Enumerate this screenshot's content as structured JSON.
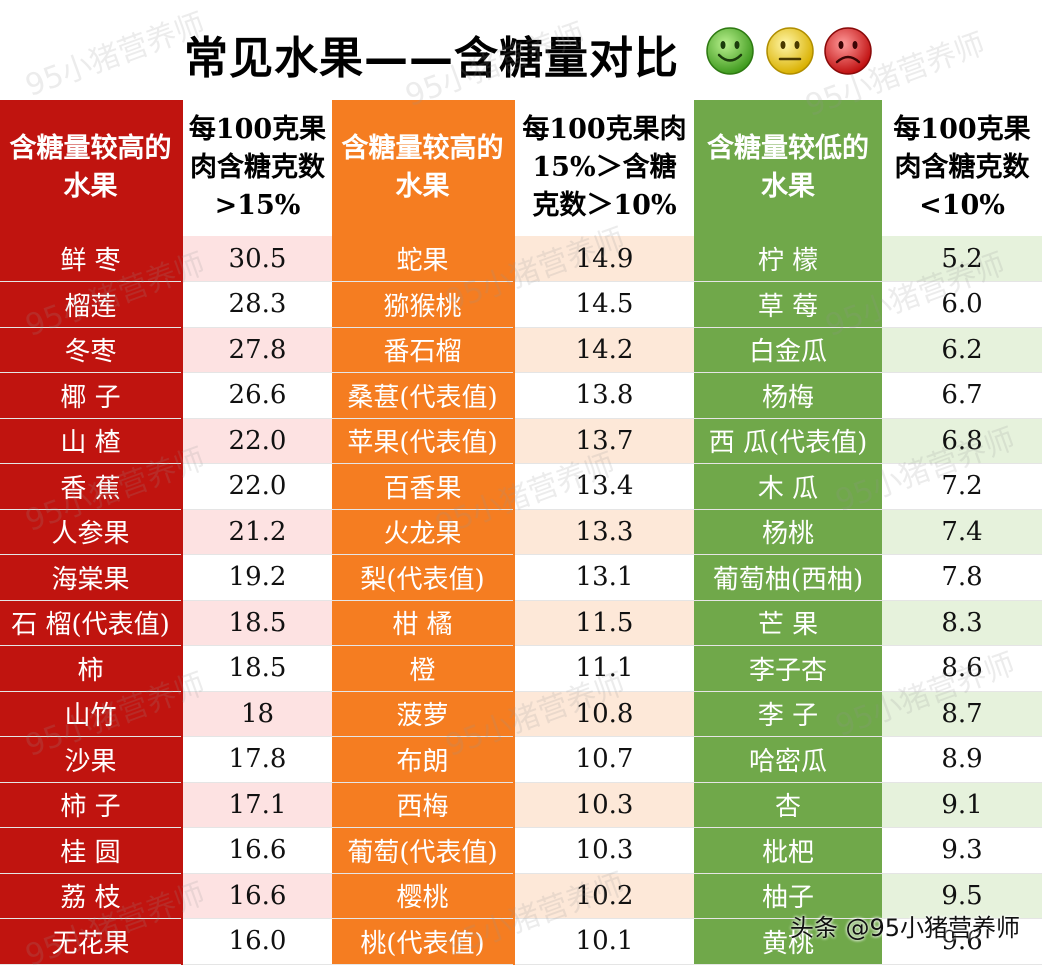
{
  "title": "常见水果——含糖量对比",
  "headers": {
    "high_name": "含糖量较高的水果",
    "high_value": "每100克果肉含糖克数>15%",
    "mid_name": "含糖量较高的水果",
    "mid_value": "每100克果肉15%＞含糖克数＞10%",
    "low_name": "含糖量较低的水果",
    "low_value": "每100克果肉含糖克数<10%"
  },
  "rows": [
    {
      "high_name": "鲜 枣",
      "high_value": "30.5",
      "mid_name": "蛇果",
      "mid_value": "14.9",
      "low_name": "柠 檬",
      "low_value": "5.2"
    },
    {
      "high_name": "榴莲",
      "high_value": "28.3",
      "mid_name": "猕猴桃",
      "mid_value": "14.5",
      "low_name": "草 莓",
      "low_value": "6.0"
    },
    {
      "high_name": "冬枣",
      "high_value": "27.8",
      "mid_name": "番石榴",
      "mid_value": "14.2",
      "low_name": "白金瓜",
      "low_value": "6.2"
    },
    {
      "high_name": "椰 子",
      "high_value": "26.6",
      "mid_name": "桑葚(代表值)",
      "mid_value": "13.8",
      "low_name": "杨梅",
      "low_value": "6.7"
    },
    {
      "high_name": "山 楂",
      "high_value": "22.0",
      "mid_name": "苹果(代表值)",
      "mid_value": "13.7",
      "low_name": "西 瓜(代表值)",
      "low_value": "6.8"
    },
    {
      "high_name": "香 蕉",
      "high_value": "22.0",
      "mid_name": "百香果",
      "mid_value": "13.4",
      "low_name": "木 瓜",
      "low_value": "7.2"
    },
    {
      "high_name": "人参果",
      "high_value": "21.2",
      "mid_name": "火龙果",
      "mid_value": "13.3",
      "low_name": "杨桃",
      "low_value": "7.4"
    },
    {
      "high_name": "海棠果",
      "high_value": "19.2",
      "mid_name": "梨(代表值)",
      "mid_value": "13.1",
      "low_name": "葡萄柚(西柚)",
      "low_value": "7.8"
    },
    {
      "high_name": "石 榴(代表值)",
      "high_value": "18.5",
      "mid_name": "柑 橘",
      "mid_value": "11.5",
      "low_name": "芒 果",
      "low_value": "8.3"
    },
    {
      "high_name": "柿",
      "high_value": "18.5",
      "mid_name": "橙",
      "mid_value": "11.1",
      "low_name": "李子杏",
      "low_value": "8.6"
    },
    {
      "high_name": "山竹",
      "high_value": "18",
      "mid_name": "菠萝",
      "mid_value": "10.8",
      "low_name": "李 子",
      "low_value": "8.7"
    },
    {
      "high_name": "沙果",
      "high_value": "17.8",
      "mid_name": "布朗",
      "mid_value": "10.7",
      "low_name": "哈密瓜",
      "low_value": "8.9"
    },
    {
      "high_name": "柿 子",
      "high_value": "17.1",
      "mid_name": "西梅",
      "mid_value": "10.3",
      "low_name": "杏",
      "low_value": "9.1"
    },
    {
      "high_name": "桂 圆",
      "high_value": "16.6",
      "mid_name": "葡萄(代表值)",
      "mid_value": "10.3",
      "low_name": "枇杷",
      "low_value": "9.3"
    },
    {
      "high_name": "荔 枝",
      "high_value": "16.6",
      "mid_name": "樱桃",
      "mid_value": "10.2",
      "low_name": "柚子",
      "low_value": "9.5"
    },
    {
      "high_name": "无花果",
      "high_value": "16.0",
      "mid_name": "桃(代表值)",
      "mid_value": "10.1",
      "low_name": "黄桃",
      "low_value": "9.6"
    }
  ],
  "watermark": "95小猪营养师",
  "footer_credit": "头条 @95小猪营养师",
  "icons": [
    "smiley-happy-icon",
    "smiley-neutral-icon",
    "smiley-sad-icon"
  ],
  "colors": {
    "high": "#c0140f",
    "mid": "#f57d21",
    "low": "#70a84a"
  }
}
